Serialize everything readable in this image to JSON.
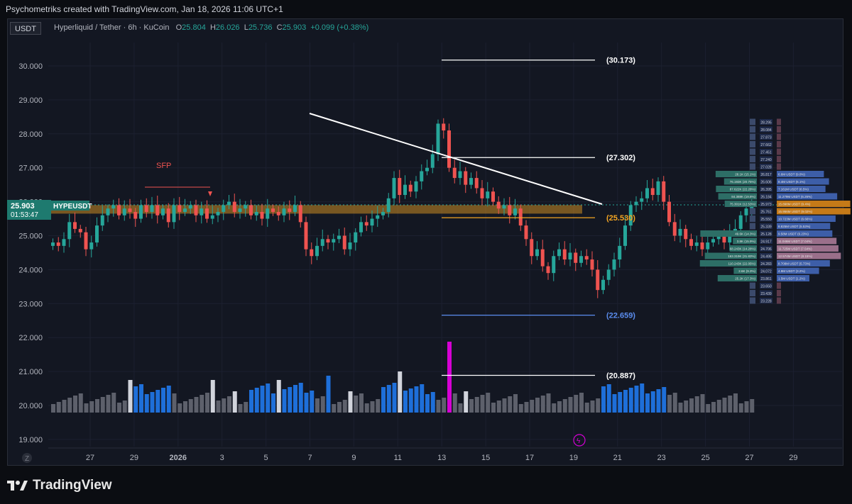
{
  "attribution": "Psychometriks created with TradingView.com, Jan 18, 2026 11:06 UTC+1",
  "header": {
    "currency_badge": "USDT",
    "title": "Hyperliquid / Tether · 6h · KuCoin",
    "o_label": "O",
    "o_value": "25.804",
    "h_label": "H",
    "h_value": "26.026",
    "l_label": "L",
    "l_value": "25.736",
    "c_label": "C",
    "c_value": "25.903",
    "change": "+0.099 (+0.38%)"
  },
  "price_tag": {
    "symbol": "HYPEUSDT",
    "price": "25.903",
    "countdown": "01:53:47"
  },
  "annotations": {
    "sfp": "SFP"
  },
  "footer": {
    "brand": "TradingView"
  },
  "colors": {
    "up": "#26a69a",
    "down": "#ef5350",
    "volume_blue": "#1e6fd9",
    "volume_gray": "#5d606b",
    "volume_white": "#d1d4dc",
    "volume_magenta": "#d500d5",
    "zone": "#f5a623",
    "line_white": "#ffffff",
    "line_blue": "#5b8def"
  },
  "chart_data": {
    "type": "candlestick",
    "interval": "6h",
    "ylim": [
      18.7,
      31.0
    ],
    "y_ticks": [
      "30.000",
      "29.000",
      "28.000",
      "27.000",
      "26.000",
      "25.000",
      "24.000",
      "23.000",
      "22.000",
      "21.000",
      "20.000",
      "19.000"
    ],
    "x_ticks": [
      "27",
      "29",
      "2026",
      "3",
      "5",
      "7",
      "9",
      "11",
      "13",
      "15",
      "17",
      "19",
      "21",
      "23",
      "25",
      "27",
      "29"
    ],
    "z_label": "Z",
    "levels": [
      {
        "label": "(30.173)",
        "value": 30.173,
        "color": "white"
      },
      {
        "label": "(27.302)",
        "value": 27.302,
        "color": "white"
      },
      {
        "label": "(25.530)",
        "value": 25.53,
        "color": "orange"
      },
      {
        "label": "(22.659)",
        "value": 22.659,
        "color": "blue"
      },
      {
        "label": "(20.887)",
        "value": 20.887,
        "color": "white"
      }
    ],
    "zone": [
      25.65,
      25.9
    ],
    "trendline": [
      {
        "x": "Jan 6",
        "y": 28.5
      },
      {
        "x": "Jan 18",
        "y": 26.0
      }
    ],
    "closes": [
      24.8,
      24.7,
      24.9,
      25.4,
      25.2,
      25.1,
      24.6,
      24.8,
      25.3,
      25.6,
      25.8,
      25.9,
      25.6,
      25.8,
      25.7,
      25.5,
      25.9,
      25.7,
      25.9,
      25.6,
      25.8,
      25.4,
      25.9,
      25.7,
      25.8,
      25.9,
      25.6,
      25.8,
      25.5,
      25.6,
      25.7,
      25.9,
      26.0,
      25.7,
      25.8,
      25.9,
      25.6,
      25.7,
      25.5,
      25.8,
      25.7,
      25.6,
      25.8,
      25.7,
      25.9,
      25.4,
      24.6,
      24.4,
      24.7,
      24.9,
      24.8,
      24.9,
      25.0,
      24.6,
      24.8,
      25.1,
      25.4,
      25.3,
      25.5,
      25.6,
      25.7,
      26.1,
      26.7,
      26.2,
      26.5,
      26.3,
      26.6,
      26.9,
      27.0,
      27.4,
      28.3,
      28.1,
      27.0,
      26.7,
      26.9,
      26.5,
      26.7,
      26.4,
      26.1,
      26.3,
      26.0,
      25.8,
      25.9,
      25.6,
      25.8,
      25.3,
      24.9,
      24.4,
      24.6,
      24.1,
      23.9,
      24.4,
      24.6,
      24.3,
      24.5,
      24.2,
      24.4,
      24.3,
      24.0,
      23.4,
      23.7,
      24.0,
      24.3,
      24.7,
      25.3,
      25.9,
      26.0,
      26.1,
      26.4,
      26.2,
      26.6,
      26.0,
      25.4,
      25.0,
      25.2,
      24.9,
      24.7,
      24.8,
      24.6,
      24.8,
      24.9,
      25.0,
      24.8,
      25.1,
      25.2,
      25.6,
      25.8,
      25.9
    ],
    "volume_profile": [
      {
        "price": "28.295"
      },
      {
        "price": "28.084"
      },
      {
        "price": "27.873"
      },
      {
        "price": "27.662"
      },
      {
        "price": "27.451"
      },
      {
        "price": "27.240"
      },
      {
        "price": "27.028"
      },
      {
        "price": "26.817",
        "buy": "28.1K (15.1%)",
        "sell": "6.6M USDT (9.0%)"
      },
      {
        "price": "26.606",
        "buy": "76.193K (20.75%)",
        "sell": "8.4M USDT (6.1%)"
      },
      {
        "price": "26.395",
        "buy": "87.622K (22.28%)",
        "sell": "7.161M USDT (6.5%)"
      },
      {
        "price": "26.184",
        "buy": "84.388K (19.8%)",
        "sell": "11.279M USDT (6.26%)"
      },
      {
        "price": "25.973",
        "buy": "75.301K (12.53%)",
        "sell": "15.898M USDT (9.4%)"
      },
      {
        "price": "25.761",
        "sell": "15.956M USDT (9.02%)"
      },
      {
        "price": "25.550",
        "sell": "10.723M USDT (6.66%)"
      },
      {
        "price": "25.339",
        "sell": "8.825M USDT (5.53%)"
      },
      {
        "price": "25.128",
        "buy": "49.6K (14.3%)",
        "sell": "9.58M USDT (6.23%)"
      },
      {
        "price": "24.917",
        "buy": "3.8K (15.9%)",
        "sell": "11.046M USDT (7.04%)"
      },
      {
        "price": "24.706",
        "buy": "68.243K (14.28%)",
        "sell": "11.725M USDT (7.54%)"
      },
      {
        "price": "24.495",
        "buy": "163.319K (31.83%)",
        "sell": "12.574M USDT (8.15%)"
      },
      {
        "price": "24.283",
        "buy": "110.243K (22.05%)",
        "sell": "8.708M USDT (5.73%)"
      },
      {
        "price": "24.072",
        "buy": "2.6K (9.3%)",
        "sell": "4.9M USDT (3.2%)"
      },
      {
        "price": "23.861",
        "buy": "25.2K (17.3%)",
        "sell": "1.5M USDT (1.2%)"
      },
      {
        "price": "23.650"
      },
      {
        "price": "23.439"
      },
      {
        "price": "23.228"
      }
    ]
  }
}
